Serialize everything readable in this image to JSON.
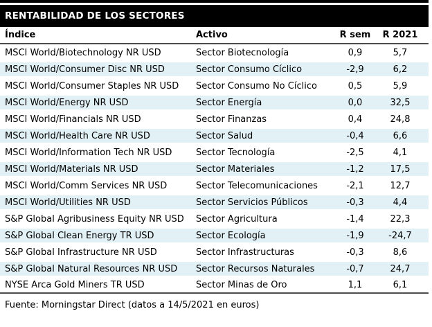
{
  "title": "RENTABILIDAD DE LOS SECTORES",
  "table": {
    "columns": [
      "Índice",
      "Activo",
      "R sem",
      "R 2021"
    ],
    "rows": [
      {
        "indice": "MSCI World/Biotechnology NR USD",
        "activo": "Sector Biotecnología",
        "r_sem": "0,9",
        "r_2021": "5,7"
      },
      {
        "indice": "MSCI World/Consumer Disc NR USD",
        "activo": "Sector Consumo Cíclico",
        "r_sem": "-2,9",
        "r_2021": "6,2"
      },
      {
        "indice": "MSCI World/Consumer Staples NR USD",
        "activo": "Sector Consumo No Cíclico",
        "r_sem": "0,5",
        "r_2021": "5,9"
      },
      {
        "indice": "MSCI World/Energy NR USD",
        "activo": "Sector Energía",
        "r_sem": "0,0",
        "r_2021": "32,5"
      },
      {
        "indice": "MSCI World/Financials NR USD",
        "activo": "Sector Finanzas",
        "r_sem": "0,4",
        "r_2021": "24,8"
      },
      {
        "indice": "MSCI World/Health Care NR USD",
        "activo": "Sector Salud",
        "r_sem": "-0,4",
        "r_2021": "6,6"
      },
      {
        "indice": "MSCI World/Information Tech NR USD",
        "activo": "Sector Tecnología",
        "r_sem": "-2,5",
        "r_2021": "4,1"
      },
      {
        "indice": "MSCI World/Materials NR USD",
        "activo": "Sector Materiales",
        "r_sem": "-1,2",
        "r_2021": "17,5"
      },
      {
        "indice": "MSCI World/Comm Services NR USD",
        "activo": "Sector Telecomunicaciones",
        "r_sem": "-2,1",
        "r_2021": "12,7"
      },
      {
        "indice": "MSCI World/Utilities NR USD",
        "activo": "Sector Servicios Públicos",
        "r_sem": "-0,3",
        "r_2021": "4,4"
      },
      {
        "indice": "S&P Global Agribusiness Equity NR USD",
        "activo": "Sector Agricultura",
        "r_sem": "-1,4",
        "r_2021": "22,3"
      },
      {
        "indice": "S&P Global Clean Energy TR USD",
        "activo": "Sector Ecología",
        "r_sem": "-1,9",
        "r_2021": "-24,7"
      },
      {
        "indice": "S&P Global Infrastructure NR USD",
        "activo": "Sector Infrastructuras",
        "r_sem": "-0,3",
        "r_2021": "8,6"
      },
      {
        "indice": "S&P Global Natural Resources NR USD",
        "activo": "Sector Recursos Naturales",
        "r_sem": "-0,7",
        "r_2021": "24,7"
      },
      {
        "indice": "NYSE Arca Gold Miners TR USD",
        "activo": "Sector Minas de Oro",
        "r_sem": "1,1",
        "r_2021": "6,1"
      }
    ]
  },
  "footer": "Fuente: Morningstar Direct (datos a 14/5/2021 en euros)",
  "colors": {
    "row_alt": "#e2f1f6",
    "title_bar_bg": "#000000",
    "title_bar_text": "#ffffff",
    "rule": "#4d4d4d"
  }
}
